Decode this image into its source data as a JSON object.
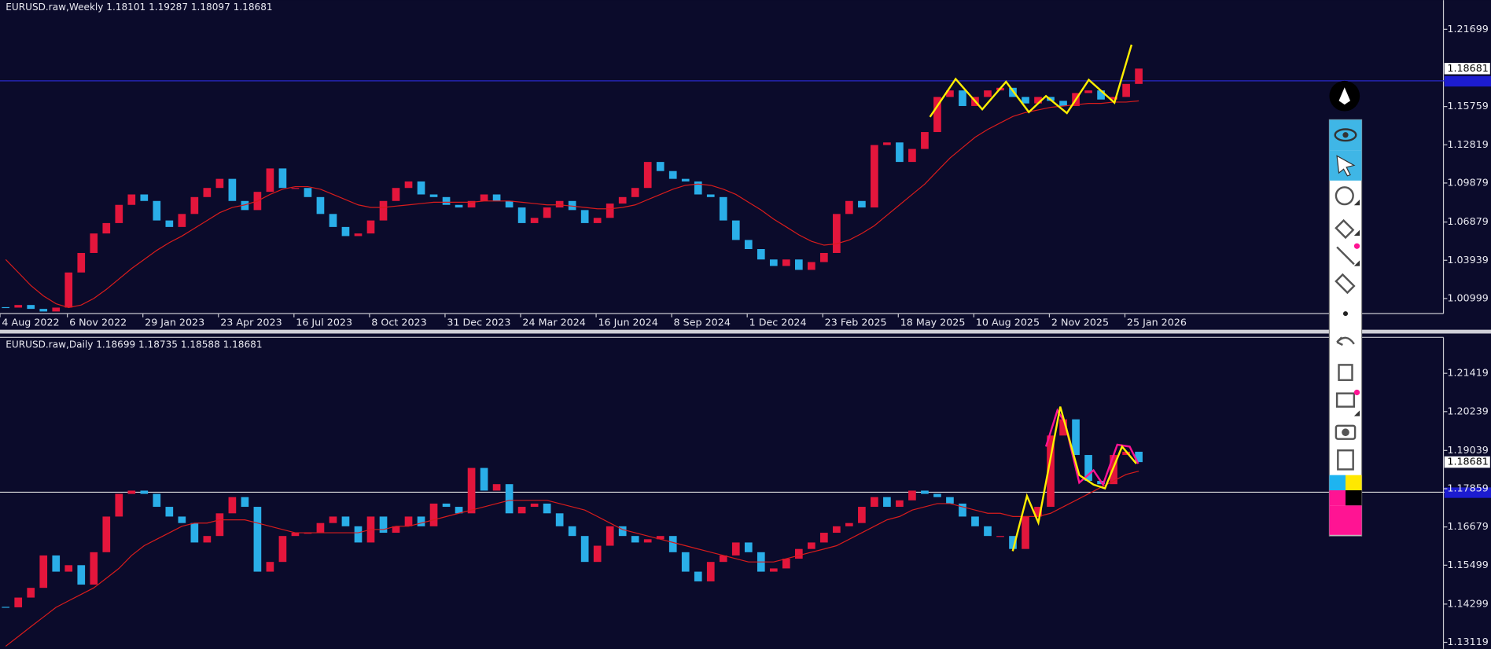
{
  "chart_data": [
    {
      "type": "candlestick",
      "title": "EURUSD.raw,Weekly  1.18101 1.19287 1.18097 1.18681",
      "up_color": "#e3163c",
      "down_color": "#2aaee8",
      "ma_color": "#d81c1c",
      "values": [
        1.003,
        1.005,
        1.002,
        1.0,
        1.003,
        1.03,
        1.045,
        1.06,
        1.068,
        1.082,
        1.09,
        1.085,
        1.07,
        1.065,
        1.075,
        1.088,
        1.095,
        1.102,
        1.085,
        1.078,
        1.092,
        1.11,
        1.095,
        1.095,
        1.088,
        1.075,
        1.065,
        1.058,
        1.06,
        1.07,
        1.085,
        1.095,
        1.1,
        1.09,
        1.088,
        1.082,
        1.08,
        1.085,
        1.09,
        1.085,
        1.08,
        1.068,
        1.072,
        1.08,
        1.085,
        1.078,
        1.068,
        1.072,
        1.083,
        1.088,
        1.095,
        1.115,
        1.108,
        1.102,
        1.1,
        1.09,
        1.088,
        1.07,
        1.055,
        1.048,
        1.04,
        1.035,
        1.04,
        1.032,
        1.038,
        1.045,
        1.075,
        1.085,
        1.08,
        1.128,
        1.13,
        1.115,
        1.125,
        1.138,
        1.165,
        1.17,
        1.158,
        1.165,
        1.17,
        1.172,
        1.165,
        1.16,
        1.165,
        1.162,
        1.158,
        1.168,
        1.17,
        1.163,
        1.165,
        1.175,
        1.1868
      ],
      "ma": [
        1.04,
        1.03,
        1.02,
        1.012,
        1.006,
        1.003,
        1.005,
        1.01,
        1.017,
        1.025,
        1.033,
        1.04,
        1.047,
        1.053,
        1.058,
        1.064,
        1.07,
        1.076,
        1.08,
        1.082,
        1.085,
        1.09,
        1.094,
        1.096,
        1.096,
        1.094,
        1.09,
        1.086,
        1.082,
        1.08,
        1.08,
        1.081,
        1.082,
        1.083,
        1.084,
        1.084,
        1.084,
        1.084,
        1.085,
        1.085,
        1.085,
        1.084,
        1.083,
        1.082,
        1.082,
        1.081,
        1.08,
        1.079,
        1.079,
        1.08,
        1.082,
        1.086,
        1.09,
        1.094,
        1.097,
        1.098,
        1.097,
        1.094,
        1.09,
        1.084,
        1.078,
        1.071,
        1.065,
        1.059,
        1.054,
        1.051,
        1.052,
        1.055,
        1.06,
        1.066,
        1.074,
        1.082,
        1.09,
        1.098,
        1.108,
        1.118,
        1.126,
        1.134,
        1.14,
        1.145,
        1.15,
        1.153,
        1.155,
        1.157,
        1.158,
        1.159,
        1.16,
        1.16,
        1.161,
        1.161,
        1.162
      ],
      "xlim": [
        -0.45,
        114.2
      ],
      "xticks": [
        {
          "value": -0.45,
          "label": "4 Aug 2022"
        },
        {
          "value": 4.9,
          "label": "6 Nov 2022"
        },
        {
          "value": 10.9,
          "label": "29 Jan 2023"
        },
        {
          "value": 16.9,
          "label": "23 Apr 2023"
        },
        {
          "value": 22.9,
          "label": "16 Jul 2023"
        },
        {
          "value": 28.9,
          "label": "8 Oct 2023"
        },
        {
          "value": 34.9,
          "label": "31 Dec 2023"
        },
        {
          "value": 40.9,
          "label": "24 Mar 2024"
        },
        {
          "value": 46.9,
          "label": "16 Jun 2024"
        },
        {
          "value": 52.9,
          "label": "8 Sep 2024"
        },
        {
          "value": 58.9,
          "label": "1 Dec 2024"
        },
        {
          "value": 64.9,
          "label": "23 Feb 2025"
        },
        {
          "value": 70.9,
          "label": "18 May 2025"
        },
        {
          "value": 76.9,
          "label": "10 Aug 2025"
        },
        {
          "value": 82.9,
          "label": "2 Nov 2025"
        },
        {
          "value": 88.9,
          "label": "25 Jan 2026"
        }
      ],
      "ylim": [
        0.9984,
        1.2395
      ],
      "yticks": [
        1.21699,
        1.15759,
        1.12819,
        1.09879,
        1.06879,
        1.03939,
        1.00999
      ],
      "last_price": 1.18681
    },
    {
      "type": "candlestick",
      "title": "EURUSD.raw,Daily  1.18699 1.18735 1.18588 1.18681",
      "up_color": "#e3163c",
      "down_color": "#2aaee8",
      "ma_color": "#d81c1c",
      "values": [
        1.142,
        1.145,
        1.148,
        1.158,
        1.153,
        1.155,
        1.149,
        1.159,
        1.17,
        1.177,
        1.178,
        1.177,
        1.173,
        1.17,
        1.168,
        1.162,
        1.164,
        1.171,
        1.176,
        1.173,
        1.153,
        1.156,
        1.164,
        1.165,
        1.165,
        1.168,
        1.17,
        1.167,
        1.162,
        1.17,
        1.165,
        1.167,
        1.17,
        1.167,
        1.174,
        1.173,
        1.171,
        1.185,
        1.178,
        1.18,
        1.171,
        1.173,
        1.174,
        1.171,
        1.167,
        1.164,
        1.156,
        1.161,
        1.167,
        1.164,
        1.162,
        1.163,
        1.164,
        1.159,
        1.153,
        1.15,
        1.156,
        1.158,
        1.162,
        1.159,
        1.153,
        1.154,
        1.157,
        1.16,
        1.162,
        1.165,
        1.167,
        1.168,
        1.173,
        1.176,
        1.173,
        1.175,
        1.178,
        1.177,
        1.176,
        1.174,
        1.17,
        1.167,
        1.164,
        1.164,
        1.16,
        1.17,
        1.173,
        1.195,
        1.2,
        1.189,
        1.181,
        1.18,
        1.189,
        1.19,
        1.1868
      ],
      "ma": [
        1.13,
        1.133,
        1.136,
        1.139,
        1.142,
        1.144,
        1.146,
        1.148,
        1.151,
        1.154,
        1.158,
        1.161,
        1.163,
        1.165,
        1.167,
        1.168,
        1.168,
        1.169,
        1.169,
        1.169,
        1.168,
        1.167,
        1.166,
        1.165,
        1.165,
        1.165,
        1.165,
        1.165,
        1.165,
        1.166,
        1.166,
        1.167,
        1.167,
        1.168,
        1.169,
        1.17,
        1.171,
        1.172,
        1.173,
        1.174,
        1.175,
        1.175,
        1.175,
        1.175,
        1.174,
        1.173,
        1.172,
        1.17,
        1.168,
        1.166,
        1.165,
        1.164,
        1.163,
        1.162,
        1.161,
        1.16,
        1.159,
        1.158,
        1.157,
        1.156,
        1.156,
        1.156,
        1.157,
        1.158,
        1.159,
        1.16,
        1.161,
        1.163,
        1.165,
        1.167,
        1.169,
        1.17,
        1.172,
        1.173,
        1.174,
        1.174,
        1.173,
        1.172,
        1.171,
        1.171,
        1.17,
        1.17,
        1.17,
        1.171,
        1.173,
        1.175,
        1.177,
        1.179,
        1.181,
        1.183,
        1.184
      ],
      "xlim": [
        -0.45,
        114.2
      ],
      "ylim": [
        1.12915,
        1.2253
      ],
      "yticks": [
        1.21419,
        1.20239,
        1.19039,
        1.17859,
        1.16679,
        1.15499,
        1.14299,
        1.13119
      ],
      "last_price": 1.18681
    }
  ]
}
